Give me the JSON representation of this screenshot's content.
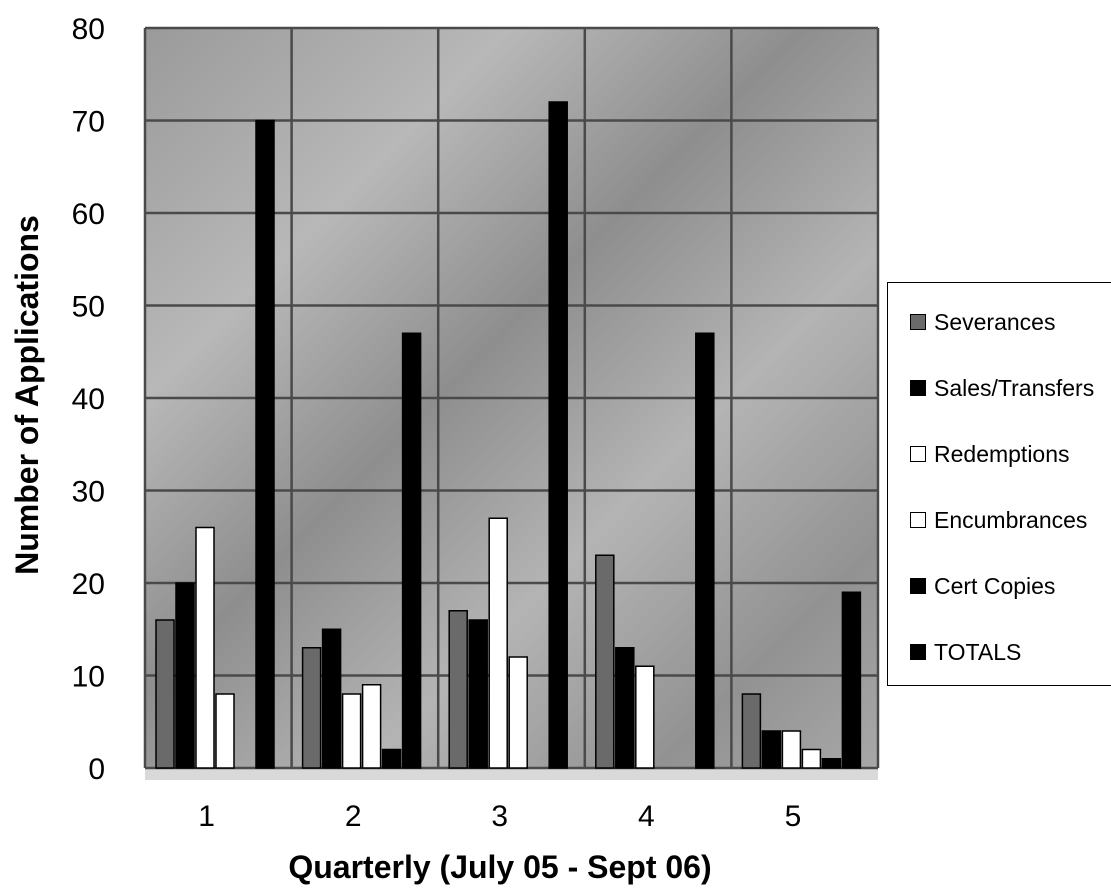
{
  "chart_data": {
    "type": "bar",
    "title": "",
    "xlabel": "Quarterly (July 05 - Sept 06)",
    "ylabel": "Number of Applications",
    "categories": [
      "1",
      "2",
      "3",
      "4",
      "5"
    ],
    "ylim": [
      0,
      80
    ],
    "yticks": [
      "0",
      "10",
      "20",
      "30",
      "40",
      "50",
      "60",
      "70",
      "80"
    ],
    "grid": true,
    "legend_position": "right",
    "series": [
      {
        "name": "Severances",
        "color": "#6a6a6a",
        "values": [
          16,
          13,
          17,
          23,
          8
        ]
      },
      {
        "name": "Sales/Transfers",
        "color": "#000000",
        "values": [
          20,
          15,
          16,
          13,
          4
        ]
      },
      {
        "name": "Redemptions",
        "color": "#ffffff",
        "values": [
          26,
          8,
          27,
          11,
          4
        ]
      },
      {
        "name": "Encumbrances",
        "color": "#ffffff",
        "values": [
          8,
          9,
          12,
          0,
          2
        ]
      },
      {
        "name": "Cert Copies",
        "color": "#000000",
        "values": [
          0,
          2,
          0,
          0,
          1
        ]
      },
      {
        "name": "TOTALS",
        "color": "#000000",
        "values": [
          70,
          47,
          72,
          47,
          19
        ]
      }
    ]
  }
}
